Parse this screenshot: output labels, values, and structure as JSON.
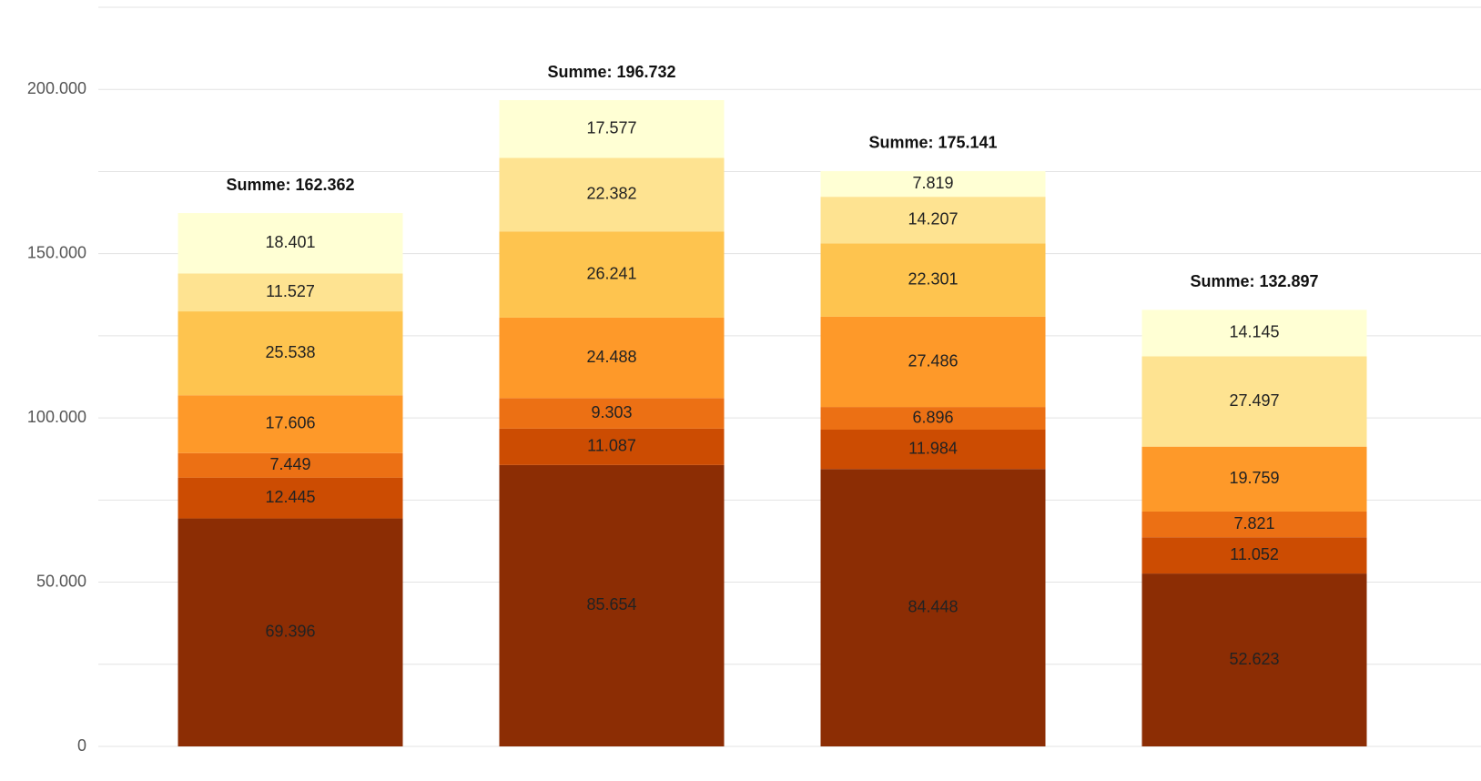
{
  "chart_data": {
    "type": "stacked_bar",
    "categories": [
      null,
      null,
      null,
      null
    ],
    "series": [
      {
        "color": "#8c2d04",
        "values": [
          69396,
          85654,
          84448,
          52623
        ],
        "value_labels": [
          "69.396",
          "85.654",
          "84.448",
          "52.623"
        ]
      },
      {
        "color": "#cc4c02",
        "values": [
          12445,
          11087,
          11984,
          11052
        ],
        "value_labels": [
          "12.445",
          "11.087",
          "11.984",
          "11.052"
        ]
      },
      {
        "color": "#ec7014",
        "values": [
          7449,
          9303,
          6896,
          7821
        ],
        "value_labels": [
          "7.449",
          "9.303",
          "6.896",
          "7.821"
        ]
      },
      {
        "color": "#fe9929",
        "values": [
          17606,
          24488,
          27486,
          19759
        ],
        "value_labels": [
          "17.606",
          "24.488",
          "27.486",
          "19.759"
        ]
      },
      {
        "color": "#fec44f",
        "values": [
          25538,
          26241,
          22301,
          null
        ],
        "value_labels": [
          "25.538",
          "26.241",
          "22.301",
          null
        ]
      },
      {
        "color": "#fee391",
        "values": [
          11527,
          22382,
          14207,
          27497
        ],
        "value_labels": [
          "11.527",
          "22.382",
          "14.207",
          "27.497"
        ]
      },
      {
        "color": "#ffffd4",
        "values": [
          18401,
          17577,
          7819,
          14145
        ],
        "value_labels": [
          "18.401",
          "17.577",
          "7.819",
          "14.145"
        ]
      }
    ],
    "total_labels": [
      "Summe:  162.362",
      "Summe:  196.732",
      "Summe:  175.141",
      "Summe:  132.897"
    ],
    "ylim": [
      0,
      225000
    ],
    "yticks": [
      0,
      {
        "value": 50000,
        "label": "50.000"
      },
      {
        "value": 100000,
        "label": "100.000"
      },
      {
        "value": 150000,
        "label": "150.000"
      },
      {
        "value": 200000,
        "label": "200.000"
      }
    ],
    "minor_yticks": [
      25000,
      75000,
      125000,
      175000,
      225000
    ],
    "grid": true
  }
}
